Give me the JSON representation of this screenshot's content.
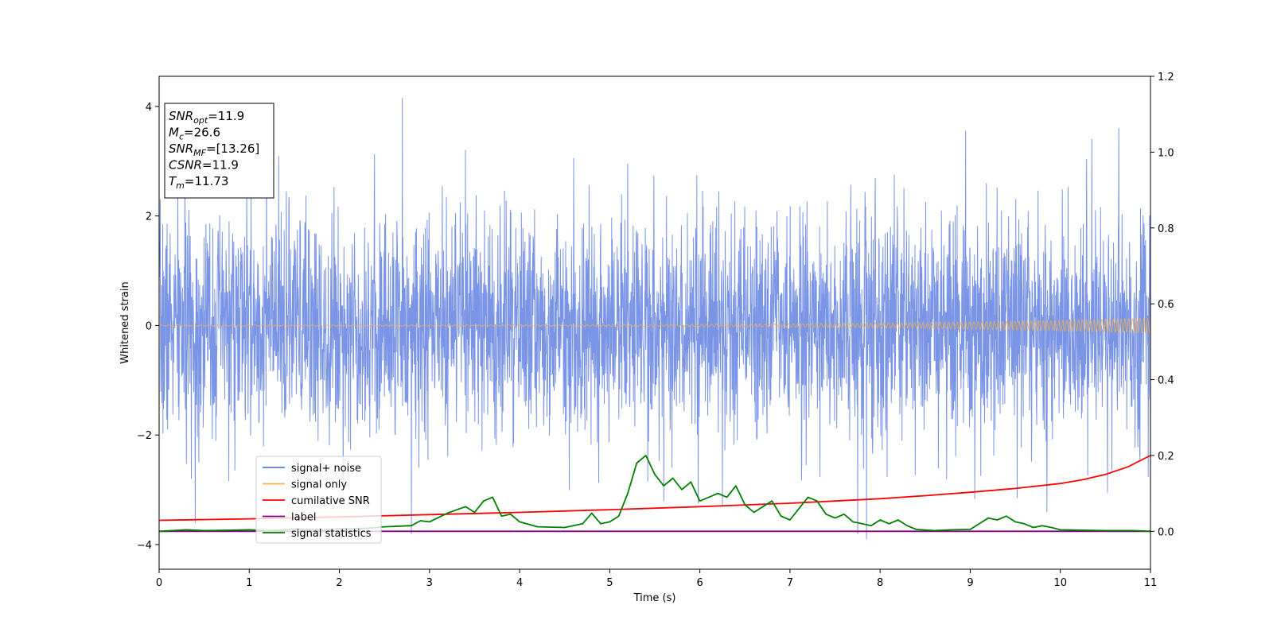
{
  "chart_data": {
    "type": "line",
    "xlabel": "Time (s)",
    "ylabel": "Whitened strain",
    "xlim": [
      0,
      11
    ],
    "ylim": [
      -4.45,
      4.55
    ],
    "y2lim": [
      -0.1,
      1.2
    ],
    "xticks": [
      0,
      1,
      2,
      3,
      4,
      5,
      6,
      7,
      8,
      9,
      10,
      11
    ],
    "yticks": [
      -4,
      -2,
      0,
      2,
      4
    ],
    "y2ticks": [
      "0.0",
      "0.2",
      "0.4",
      "0.6",
      "0.8",
      "1.0",
      "1.2"
    ],
    "grid": false,
    "legend_position": "lower-left",
    "legend": [
      {
        "label": "signal+ noise",
        "color": "#5a7ae0"
      },
      {
        "label": "signal only",
        "color": "#f5b041"
      },
      {
        "label": "cumilative SNR",
        "color": "#ff0000"
      },
      {
        "label": "label",
        "color": "#800080"
      },
      {
        "label": "signal statistics",
        "color": "#008000"
      }
    ],
    "annotation": [
      {
        "sym": "SNR",
        "sub": "opt",
        "value": "=11.9"
      },
      {
        "sym": "M",
        "sub": "c",
        "value": "=26.6"
      },
      {
        "sym": "SNR",
        "sub": "MF",
        "value": "=[13.26]"
      },
      {
        "sym": "CSNR",
        "sub": "",
        "value": "=11.9"
      },
      {
        "sym": "T",
        "sub": "m",
        "value": "=11.73"
      }
    ],
    "series": [
      {
        "label_ref": 0,
        "axis": "left",
        "color": "#5a7ae0",
        "kind": "noise",
        "sigma": 1.0,
        "n_samples": 3600,
        "seed": 7,
        "peaks": [
          [
            0.4,
            -3.6
          ],
          [
            2.7,
            4.15
          ],
          [
            2.8,
            -3.8
          ],
          [
            3.4,
            3.2
          ],
          [
            4.55,
            -3.0
          ],
          [
            5.2,
            2.95
          ],
          [
            5.6,
            -3.2
          ],
          [
            6.25,
            -3.3
          ],
          [
            7.75,
            -3.8
          ],
          [
            7.85,
            -3.9
          ],
          [
            8.95,
            3.55
          ],
          [
            9.85,
            -3.4
          ],
          [
            10.35,
            3.4
          ],
          [
            10.65,
            3.6
          ],
          [
            11.0,
            -3.2
          ]
        ]
      },
      {
        "label_ref": 1,
        "axis": "left",
        "color": "#f5b041",
        "kind": "chirp",
        "amp_start": 0.01,
        "amp_end": 0.14,
        "cycles": 120
      },
      {
        "label_ref": 2,
        "axis": "right",
        "color": "#ff0000",
        "x": [
          0,
          1,
          2,
          3,
          4,
          5,
          6,
          7,
          7.5,
          8,
          8.5,
          9,
          9.5,
          10,
          10.25,
          10.5,
          10.75,
          11
        ],
        "y": [
          0.029,
          0.033,
          0.038,
          0.044,
          0.05,
          0.057,
          0.065,
          0.074,
          0.08,
          0.086,
          0.094,
          0.103,
          0.113,
          0.126,
          0.136,
          0.15,
          0.17,
          0.2
        ]
      },
      {
        "label_ref": 3,
        "axis": "right",
        "color": "#800080",
        "x": [
          0,
          11
        ],
        "y": [
          0.0,
          0.0
        ]
      },
      {
        "label_ref": 4,
        "axis": "right",
        "color": "#008000",
        "x": [
          0,
          0.3,
          0.5,
          0.8,
          1.0,
          1.2,
          1.5,
          1.8,
          2.0,
          2.3,
          2.5,
          2.8,
          2.9,
          3.0,
          3.2,
          3.4,
          3.5,
          3.6,
          3.7,
          3.8,
          3.9,
          4.0,
          4.2,
          4.5,
          4.7,
          4.8,
          4.9,
          5.0,
          5.1,
          5.2,
          5.3,
          5.4,
          5.5,
          5.6,
          5.7,
          5.8,
          5.9,
          6.0,
          6.1,
          6.2,
          6.3,
          6.4,
          6.5,
          6.6,
          6.7,
          6.8,
          6.9,
          7.0,
          7.1,
          7.2,
          7.3,
          7.4,
          7.5,
          7.6,
          7.7,
          7.8,
          7.9,
          8.0,
          8.1,
          8.2,
          8.3,
          8.4,
          8.6,
          8.8,
          9.0,
          9.1,
          9.2,
          9.3,
          9.4,
          9.5,
          9.6,
          9.7,
          9.8,
          9.9,
          10.0,
          10.5,
          10.8,
          11.0
        ],
        "y": [
          0.0,
          0.004,
          0.002,
          0.003,
          0.004,
          0.002,
          0.005,
          0.004,
          0.006,
          0.008,
          0.012,
          0.015,
          0.028,
          0.025,
          0.048,
          0.065,
          0.05,
          0.08,
          0.09,
          0.04,
          0.045,
          0.025,
          0.012,
          0.01,
          0.02,
          0.048,
          0.02,
          0.025,
          0.04,
          0.1,
          0.18,
          0.2,
          0.15,
          0.12,
          0.14,
          0.11,
          0.13,
          0.08,
          0.09,
          0.1,
          0.09,
          0.12,
          0.07,
          0.05,
          0.065,
          0.08,
          0.04,
          0.03,
          0.06,
          0.09,
          0.08,
          0.045,
          0.035,
          0.045,
          0.025,
          0.02,
          0.015,
          0.03,
          0.02,
          0.03,
          0.015,
          0.005,
          0.002,
          0.004,
          0.005,
          0.02,
          0.035,
          0.03,
          0.04,
          0.025,
          0.02,
          0.01,
          0.015,
          0.01,
          0.004,
          0.002,
          0.002,
          0.0
        ]
      }
    ]
  }
}
